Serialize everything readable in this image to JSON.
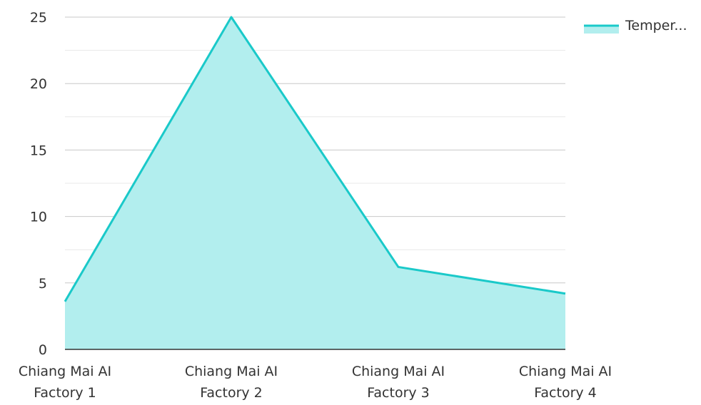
{
  "chart_data": {
    "type": "area",
    "categories": [
      [
        "Chiang Mai AI",
        "Factory 1"
      ],
      [
        "Chiang Mai AI",
        "Factory 2"
      ],
      [
        "Chiang Mai AI",
        "Factory 3"
      ],
      [
        "Chiang Mai AI",
        "Factory 4"
      ]
    ],
    "series": [
      {
        "name": "Temper...",
        "values": [
          3.6,
          25,
          6.2,
          4.2
        ],
        "line_color": "#1ac9c9",
        "fill_color": "#b2eeee"
      }
    ],
    "ylim": [
      0,
      25
    ],
    "yticks": [
      0,
      5,
      10,
      15,
      20,
      25
    ],
    "grid": true,
    "legend": "top-right"
  },
  "colors": {
    "major_grid": "#c8c8c8",
    "minor_grid": "#e8e8e8",
    "axis": "#333333"
  }
}
